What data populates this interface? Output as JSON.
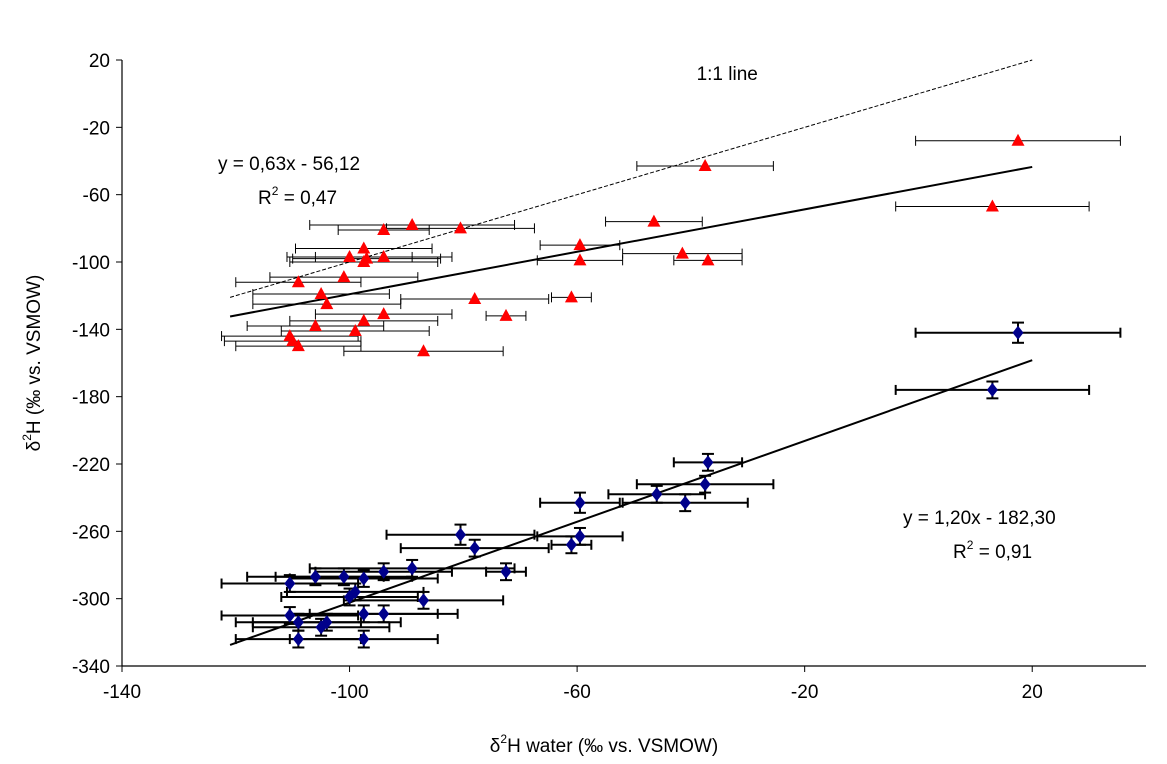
{
  "chart_data": {
    "type": "scatter",
    "title": "",
    "xlabel": {
      "prefix": "δ",
      "sup": "2",
      "rest": "H water (‰ vs. VSMOW)"
    },
    "ylabel": {
      "prefix": "δ",
      "sup": "2",
      "rest": "H (‰ vs. VSMOW)"
    },
    "xlim": [
      -140,
      40
    ],
    "ylim": [
      -340,
      20
    ],
    "x_ticks": [
      -140,
      -100,
      -60,
      -20,
      20
    ],
    "y_ticks": [
      20,
      -20,
      -60,
      -100,
      -140,
      -180,
      -220,
      -260,
      -300,
      -340
    ],
    "grid": false,
    "legend": "none",
    "reference_line": {
      "label": "1:1 line",
      "slope": 1,
      "intercept": 0,
      "x_range": [
        -121,
        20
      ],
      "color": "#000000"
    },
    "series": [
      {
        "marker": "triangle",
        "color": "#ff0000",
        "errorbar_color": "#000000",
        "fit": {
          "slope": 0.63,
          "intercept": -56.12,
          "x_range": [
            -121,
            20
          ]
        },
        "equation": "y = 0,63x - 56,12",
        "r2": {
          "prefix": "R",
          "sup": "2",
          "rest": " = 0,47"
        },
        "points": [
          {
            "x": 17.5,
            "y": -28,
            "xerr": 18
          },
          {
            "x": -37.5,
            "y": -43,
            "xerr": 12
          },
          {
            "x": 13,
            "y": -67,
            "xerr": 17
          },
          {
            "x": -46.5,
            "y": -76,
            "xerr": 8.5
          },
          {
            "x": -89,
            "y": -78,
            "xerr": 18
          },
          {
            "x": -80.5,
            "y": -80,
            "xerr": 13
          },
          {
            "x": -94,
            "y": -81,
            "xerr": 8
          },
          {
            "x": -59.5,
            "y": -90,
            "xerr": 7
          },
          {
            "x": -97.5,
            "y": -92,
            "xerr": 12
          },
          {
            "x": -100,
            "y": -97,
            "xerr": 11
          },
          {
            "x": -97,
            "y": -98,
            "xerr": 13
          },
          {
            "x": -94,
            "y": -97,
            "xerr": 12
          },
          {
            "x": -59.5,
            "y": -99,
            "xerr": 7.5
          },
          {
            "x": -41.5,
            "y": -95,
            "xerr": 10.5
          },
          {
            "x": -37,
            "y": -99,
            "xerr": 6
          },
          {
            "x": -97.5,
            "y": -100,
            "xerr": 13
          },
          {
            "x": -101,
            "y": -109,
            "xerr": 13
          },
          {
            "x": -109,
            "y": -112,
            "xerr": 11
          },
          {
            "x": -105,
            "y": -119,
            "xerr": 12
          },
          {
            "x": -78,
            "y": -122,
            "xerr": 13
          },
          {
            "x": -61,
            "y": -121,
            "xerr": 3.5
          },
          {
            "x": -104,
            "y": -125,
            "xerr": 13
          },
          {
            "x": -72.5,
            "y": -132,
            "xerr": 3.5
          },
          {
            "x": -94,
            "y": -131,
            "xerr": 12
          },
          {
            "x": -97.5,
            "y": -135,
            "xerr": 13
          },
          {
            "x": -106,
            "y": -138,
            "xerr": 12
          },
          {
            "x": -99,
            "y": -141,
            "xerr": 13
          },
          {
            "x": -110.5,
            "y": -144,
            "xerr": 12
          },
          {
            "x": -110,
            "y": -147,
            "xerr": 12
          },
          {
            "x": -109,
            "y": -150,
            "xerr": 11
          },
          {
            "x": -87,
            "y": -153,
            "xerr": 14
          }
        ]
      },
      {
        "marker": "diamond",
        "color": "#00008b",
        "errorbar_color": "#000000",
        "fit": {
          "slope": 1.2,
          "intercept": -182.3,
          "x_range": [
            -121,
            20
          ]
        },
        "equation": "y = 1,20x - 182,30",
        "r2": {
          "prefix": "R",
          "sup": "2",
          "rest": " = 0,91"
        },
        "points": [
          {
            "x": 17.5,
            "y": -142,
            "xerr": 18,
            "yerr": 6
          },
          {
            "x": 13,
            "y": -176,
            "xerr": 17,
            "yerr": 5
          },
          {
            "x": -37,
            "y": -219,
            "xerr": 6,
            "yerr": 5
          },
          {
            "x": -37.5,
            "y": -232,
            "xerr": 12,
            "yerr": 5
          },
          {
            "x": -46,
            "y": -238,
            "xerr": 8.5,
            "yerr": 5
          },
          {
            "x": -59.5,
            "y": -243,
            "xerr": 7,
            "yerr": 6
          },
          {
            "x": -41,
            "y": -243,
            "xerr": 11,
            "yerr": 5
          },
          {
            "x": -59.5,
            "y": -263,
            "xerr": 7.5,
            "yerr": 5
          },
          {
            "x": -80.5,
            "y": -262,
            "xerr": 13,
            "yerr": 6
          },
          {
            "x": -61,
            "y": -268,
            "xerr": 3.5,
            "yerr": 5
          },
          {
            "x": -78,
            "y": -270,
            "xerr": 13,
            "yerr": 5
          },
          {
            "x": -72.5,
            "y": -284,
            "xerr": 3.5,
            "yerr": 5
          },
          {
            "x": -89,
            "y": -282,
            "xerr": 18,
            "yerr": 5
          },
          {
            "x": -94,
            "y": -284,
            "xerr": 12,
            "yerr": 5
          },
          {
            "x": -106,
            "y": -287,
            "xerr": 12,
            "yerr": 5
          },
          {
            "x": -101,
            "y": -287,
            "xerr": 12,
            "yerr": 5
          },
          {
            "x": -97.5,
            "y": -288,
            "xerr": 13,
            "yerr": 5
          },
          {
            "x": -110.5,
            "y": -291,
            "xerr": 12,
            "yerr": 5
          },
          {
            "x": -99,
            "y": -296,
            "xerr": 12,
            "yerr": 5
          },
          {
            "x": -100,
            "y": -299,
            "xerr": 12,
            "yerr": 5
          },
          {
            "x": -87,
            "y": -301,
            "xerr": 14,
            "yerr": 5
          },
          {
            "x": -97.5,
            "y": -309,
            "xerr": 13,
            "yerr": 5
          },
          {
            "x": -94,
            "y": -309,
            "xerr": 13,
            "yerr": 5
          },
          {
            "x": -110.5,
            "y": -310,
            "xerr": 12,
            "yerr": 5
          },
          {
            "x": -109,
            "y": -314,
            "xerr": 11,
            "yerr": 5
          },
          {
            "x": -104,
            "y": -314,
            "xerr": 13,
            "yerr": 5
          },
          {
            "x": -105,
            "y": -317,
            "xerr": 12,
            "yerr": 5
          },
          {
            "x": -109,
            "y": -324,
            "xerr": 11,
            "yerr": 5
          },
          {
            "x": -97.5,
            "y": -324,
            "xerr": 13,
            "yerr": 5
          }
        ]
      }
    ]
  }
}
